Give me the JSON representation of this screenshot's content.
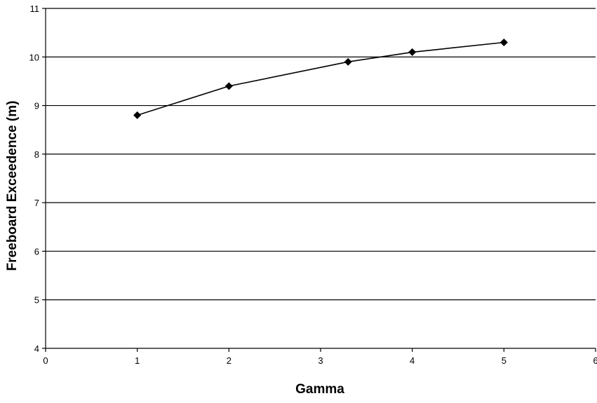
{
  "chart_data": {
    "type": "line",
    "title": "",
    "xlabel": "Gamma",
    "ylabel": "Freeboard Exceedence (m)",
    "xlim": [
      0,
      6
    ],
    "ylim": [
      4,
      11
    ],
    "x_ticks": [
      0,
      1,
      2,
      3,
      4,
      5,
      6
    ],
    "y_ticks": [
      4,
      5,
      6,
      7,
      8,
      9,
      10,
      11
    ],
    "grid": {
      "horizontal": true,
      "vertical": false
    },
    "legend": "none",
    "colors": {
      "line": "#000000",
      "marker": "#000000",
      "grid": "#000000",
      "background": "#ffffff"
    },
    "series": [
      {
        "marker": "diamond",
        "points": [
          {
            "x": 1.0,
            "y": 8.8
          },
          {
            "x": 2.0,
            "y": 9.4
          },
          {
            "x": 3.3,
            "y": 9.9
          },
          {
            "x": 4.0,
            "y": 10.1
          },
          {
            "x": 5.0,
            "y": 10.3
          }
        ]
      }
    ]
  }
}
